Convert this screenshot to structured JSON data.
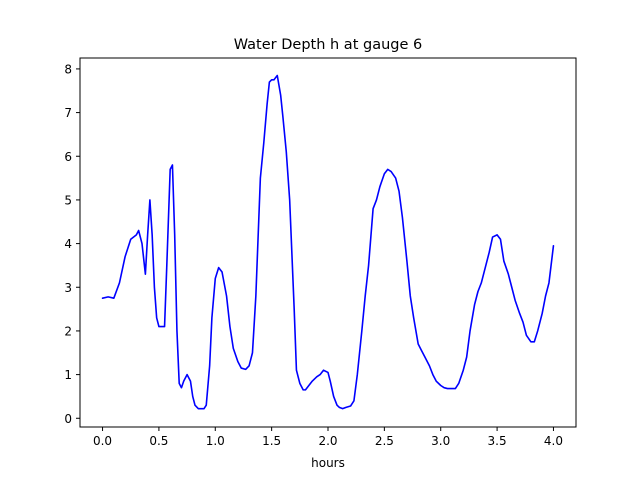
{
  "chart_data": {
    "type": "line",
    "title": "Water Depth h at gauge 6",
    "xlabel": "hours",
    "ylabel": "",
    "xlim": [
      -0.2,
      4.2
    ],
    "ylim": [
      -0.2,
      8.25
    ],
    "xticks": [
      0.0,
      0.5,
      1.0,
      1.5,
      2.0,
      2.5,
      3.0,
      3.5,
      4.0
    ],
    "xtick_labels": [
      "0.0",
      "0.5",
      "1.0",
      "1.5",
      "2.0",
      "2.5",
      "3.0",
      "3.5",
      "4.0"
    ],
    "yticks": [
      0,
      1,
      2,
      3,
      4,
      5,
      6,
      7,
      8
    ],
    "ytick_labels": [
      "0",
      "1",
      "2",
      "3",
      "4",
      "5",
      "6",
      "7",
      "8"
    ],
    "grid": false,
    "legend": "none",
    "series": [
      {
        "color": "#0000ff",
        "x": [
          0.0,
          0.05,
          0.1,
          0.15,
          0.2,
          0.25,
          0.3,
          0.32,
          0.35,
          0.38,
          0.4,
          0.42,
          0.44,
          0.46,
          0.48,
          0.5,
          0.52,
          0.55,
          0.57,
          0.6,
          0.62,
          0.64,
          0.66,
          0.68,
          0.7,
          0.72,
          0.75,
          0.78,
          0.8,
          0.82,
          0.85,
          0.88,
          0.9,
          0.92,
          0.95,
          0.97,
          1.0,
          1.03,
          1.06,
          1.1,
          1.13,
          1.16,
          1.2,
          1.23,
          1.27,
          1.3,
          1.33,
          1.36,
          1.4,
          1.43,
          1.46,
          1.48,
          1.5,
          1.52,
          1.55,
          1.58,
          1.6,
          1.63,
          1.66,
          1.7,
          1.72,
          1.75,
          1.78,
          1.8,
          1.83,
          1.86,
          1.9,
          1.93,
          1.96,
          2.0,
          2.02,
          2.05,
          2.08,
          2.1,
          2.13,
          2.16,
          2.2,
          2.23,
          2.26,
          2.3,
          2.33,
          2.36,
          2.4,
          2.43,
          2.46,
          2.5,
          2.53,
          2.56,
          2.6,
          2.63,
          2.66,
          2.7,
          2.73,
          2.76,
          2.8,
          2.83,
          2.86,
          2.9,
          2.93,
          2.96,
          3.0,
          3.03,
          3.06,
          3.1,
          3.13,
          3.16,
          3.2,
          3.23,
          3.26,
          3.3,
          3.33,
          3.36,
          3.4,
          3.43,
          3.46,
          3.5,
          3.53,
          3.56,
          3.6,
          3.63,
          3.66,
          3.7,
          3.73,
          3.76,
          3.8,
          3.83,
          3.86,
          3.9,
          3.93,
          3.96,
          4.0
        ],
        "y": [
          2.75,
          2.78,
          2.75,
          3.1,
          3.7,
          4.1,
          4.2,
          4.3,
          4.0,
          3.3,
          4.2,
          5.0,
          4.2,
          3.0,
          2.3,
          2.1,
          2.1,
          2.1,
          3.5,
          5.7,
          5.8,
          4.2,
          2.0,
          0.8,
          0.7,
          0.85,
          1.0,
          0.85,
          0.5,
          0.3,
          0.22,
          0.22,
          0.22,
          0.3,
          1.2,
          2.3,
          3.2,
          3.45,
          3.35,
          2.8,
          2.1,
          1.6,
          1.3,
          1.15,
          1.12,
          1.2,
          1.5,
          2.8,
          5.5,
          6.3,
          7.2,
          7.7,
          7.75,
          7.75,
          7.85,
          7.4,
          6.9,
          6.1,
          5.0,
          2.5,
          1.1,
          0.8,
          0.65,
          0.65,
          0.75,
          0.85,
          0.95,
          1.0,
          1.1,
          1.05,
          0.85,
          0.5,
          0.3,
          0.25,
          0.22,
          0.25,
          0.28,
          0.4,
          1.0,
          2.0,
          2.8,
          3.5,
          4.8,
          5.0,
          5.3,
          5.6,
          5.7,
          5.65,
          5.5,
          5.2,
          4.6,
          3.6,
          2.8,
          2.3,
          1.7,
          1.55,
          1.4,
          1.2,
          1.0,
          0.85,
          0.75,
          0.7,
          0.68,
          0.68,
          0.68,
          0.8,
          1.1,
          1.4,
          2.0,
          2.6,
          2.9,
          3.1,
          3.5,
          3.8,
          4.15,
          4.2,
          4.1,
          3.6,
          3.3,
          3.0,
          2.7,
          2.4,
          2.2,
          1.9,
          1.75,
          1.75,
          2.0,
          2.4,
          2.8,
          3.1,
          3.95
        ]
      }
    ]
  }
}
